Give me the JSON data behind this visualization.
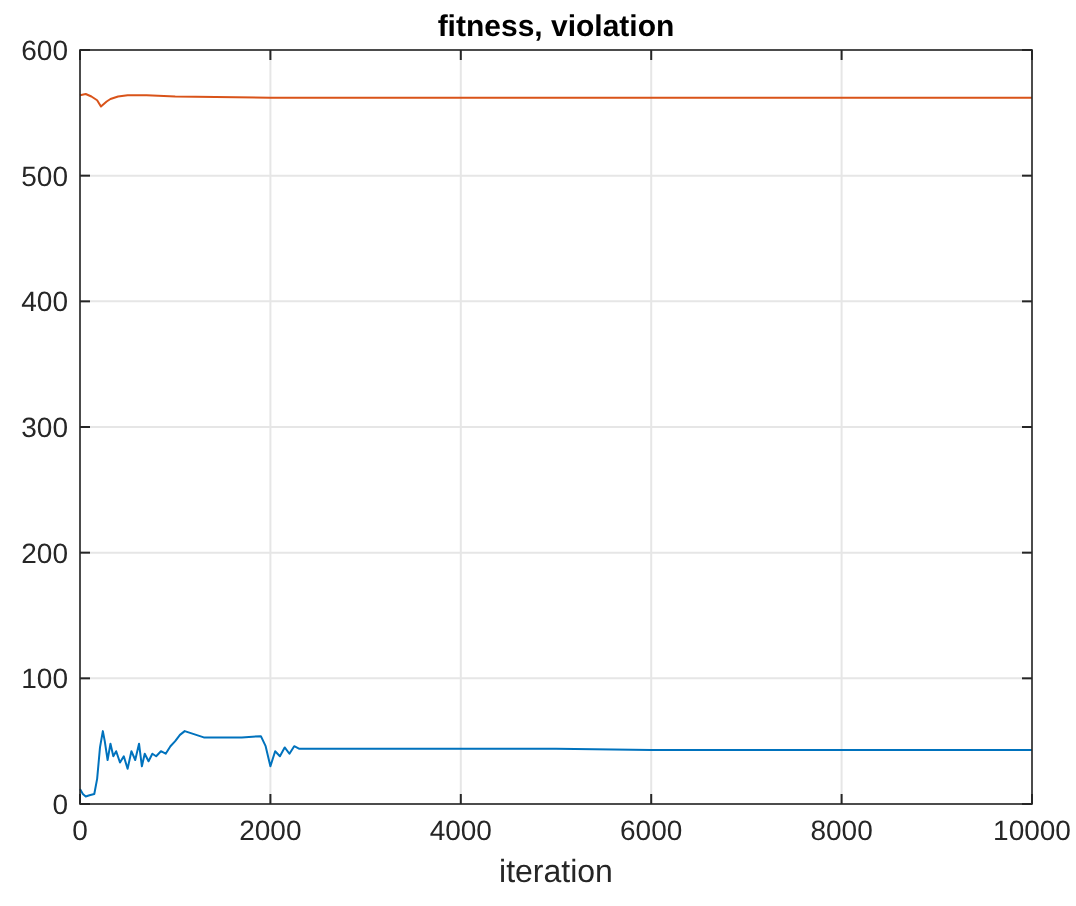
{
  "chart_data": {
    "type": "line",
    "title": "fitness, violation",
    "xlabel": "iteration",
    "xlim": [
      0,
      10000
    ],
    "ylim": [
      0,
      600
    ],
    "xticks": [
      0,
      2000,
      4000,
      6000,
      8000,
      10000
    ],
    "yticks": [
      0,
      100,
      200,
      300,
      400,
      500,
      600
    ],
    "grid": true,
    "series": [
      {
        "color": "#0072bd",
        "x": [
          0,
          30,
          60,
          100,
          150,
          180,
          210,
          240,
          260,
          290,
          320,
          350,
          380,
          420,
          460,
          500,
          540,
          580,
          620,
          650,
          680,
          720,
          760,
          800,
          850,
          900,
          950,
          1000,
          1050,
          1100,
          1300,
          1500,
          1700,
          1900,
          1950,
          2000,
          2050,
          2100,
          2150,
          2200,
          2250,
          2300,
          2400,
          3000,
          4000,
          5000,
          6000,
          7000,
          8000,
          9000,
          10000
        ],
        "values": [
          12,
          8,
          6,
          7,
          8,
          20,
          45,
          58,
          50,
          35,
          48,
          38,
          42,
          33,
          38,
          28,
          42,
          35,
          48,
          30,
          40,
          34,
          40,
          38,
          42,
          40,
          46,
          50,
          55,
          58,
          53,
          53,
          53,
          54,
          46,
          30,
          42,
          38,
          45,
          40,
          46,
          44,
          44,
          44,
          44,
          44,
          43,
          43,
          43,
          43,
          43
        ]
      },
      {
        "color": "#d95319",
        "x": [
          0,
          60,
          120,
          180,
          220,
          250,
          280,
          320,
          400,
          500,
          700,
          1000,
          2000,
          4000,
          6000,
          8000,
          10000
        ],
        "values": [
          564,
          565,
          563,
          560,
          555,
          557,
          559,
          561,
          563,
          564,
          564,
          563,
          562,
          562,
          562,
          562,
          562
        ]
      }
    ]
  }
}
